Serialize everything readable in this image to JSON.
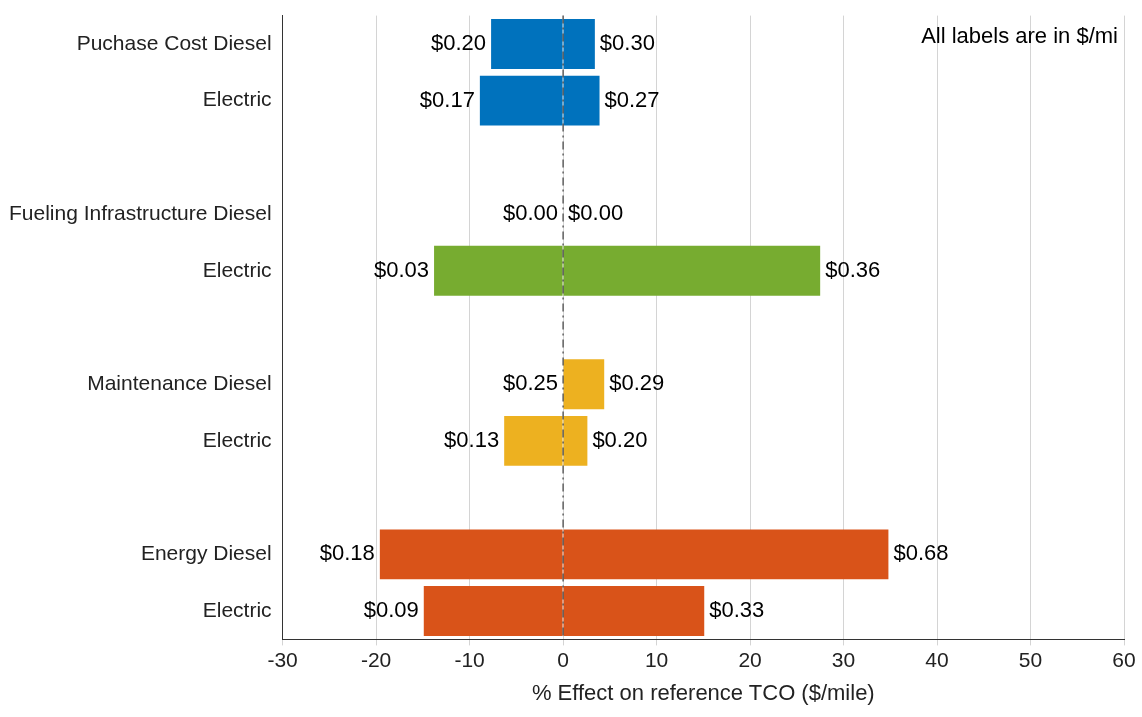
{
  "chart_data": {
    "type": "bar",
    "orientation": "horizontal",
    "stacked": true,
    "xlabel": "% Effect on reference TCO ($/mile)",
    "categories": [
      "Puchase Cost Diesel",
      "Electric",
      null,
      "Fueling Infrastructure Diesel",
      "Electric",
      null,
      "Maintenance Diesel",
      "Electric",
      null,
      "Energy Diesel",
      "Electric"
    ],
    "series": [
      {
        "colors": [
          "#0072bd",
          "#0072bd",
          null,
          "#77ac30",
          "#77ac30",
          null,
          "#edb120",
          "#edb120",
          null,
          "#d95319",
          "#d95319"
        ],
        "values": [
          -7.7,
          -8.9,
          null,
          0,
          -13.8,
          null,
          0,
          -6.3,
          null,
          -19.6,
          -14.9
        ]
      },
      {
        "colors": [
          "#0072bd",
          "#0072bd",
          null,
          "#77ac30",
          "#77ac30",
          null,
          "#edb120",
          "#edb120",
          null,
          "#d95319",
          "#d95319"
        ],
        "values": [
          3.4,
          3.9,
          null,
          0,
          27.5,
          null,
          4.4,
          2.6,
          null,
          34.8,
          15.1
        ]
      }
    ],
    "xlim": [
      -30,
      60
    ],
    "xticks": [
      -30,
      -20,
      -10,
      0,
      10,
      20,
      30,
      40,
      50,
      60
    ],
    "grid": "x",
    "legend": false,
    "ref_lines": [
      {
        "axis": "x",
        "value": 0,
        "color": "#404040",
        "line_style": "dashed"
      }
    ],
    "annotations": [
      "$0.20",
      "$0.30",
      "$0.17",
      "$0.27",
      "$0.00",
      "$0.00",
      "$0.03",
      "$0.36",
      "$0.25",
      "$0.29",
      "$0.13",
      "$0.20",
      "$0.18",
      "$0.68",
      "$0.09",
      "$0.33",
      "All labels are in $/mi"
    ]
  }
}
